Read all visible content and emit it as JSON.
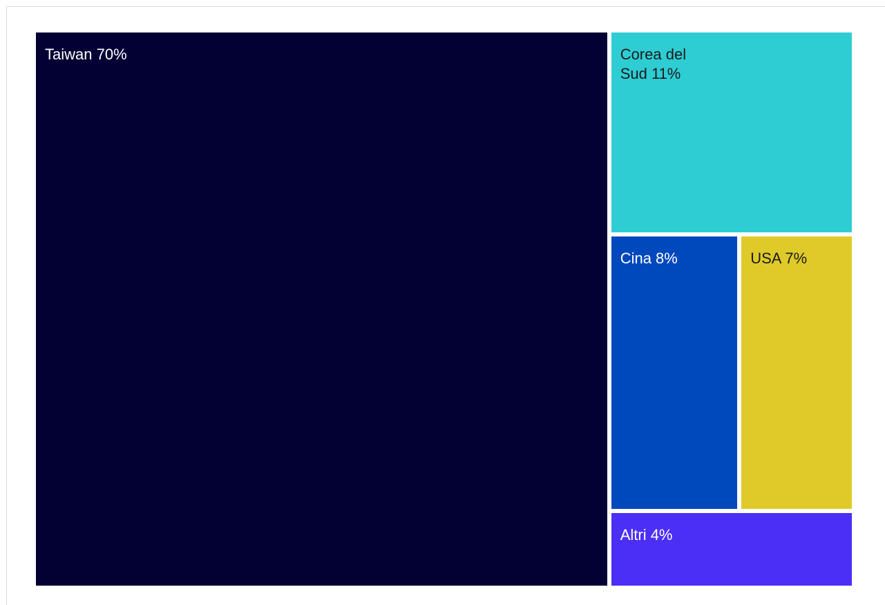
{
  "chart_data": {
    "type": "treemap",
    "title": "",
    "unit": "%",
    "items": [
      {
        "name": "Taiwan",
        "value": 70,
        "label": "Taiwan 70%",
        "color": "#030133",
        "text_color": "#ffffff"
      },
      {
        "name": "Corea del Sud",
        "value": 11,
        "label": "Corea del Sud 11%",
        "color": "#2ecdd4",
        "text_color": "#1a1a1a"
      },
      {
        "name": "Cina",
        "value": 8,
        "label": "Cina 8%",
        "color": "#0049bd",
        "text_color": "#ffffff"
      },
      {
        "name": "USA",
        "value": 7,
        "label": "USA 7%",
        "color": "#dfca2a",
        "text_color": "#1a1a1a"
      },
      {
        "name": "Altri",
        "value": 4,
        "label": "Altri 4%",
        "color": "#4b2ff5",
        "text_color": "#ffffff"
      }
    ]
  }
}
